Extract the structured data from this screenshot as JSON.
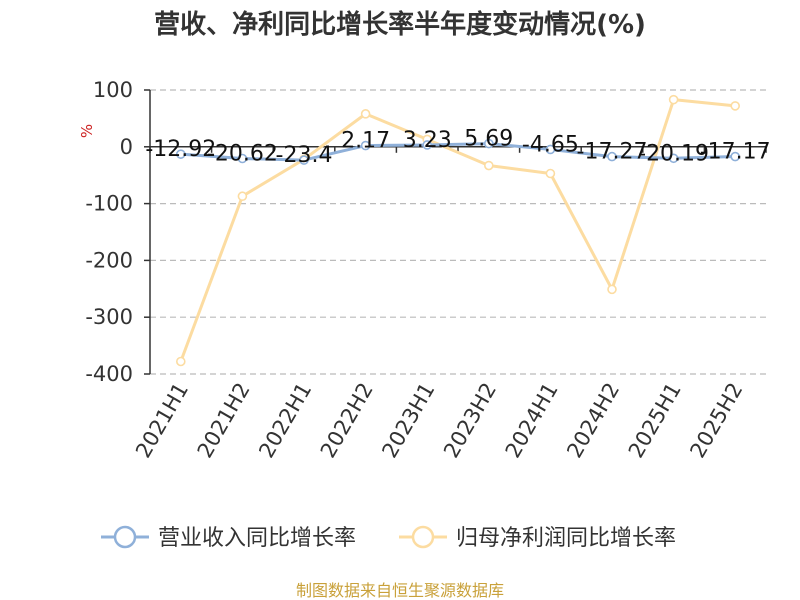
{
  "chart_data": {
    "type": "line",
    "title": "营收、净利同比增长率半年度变动情况(%)",
    "ylabel": "%",
    "categories": [
      "2021H1",
      "2021H2",
      "2022H1",
      "2022H2",
      "2023H1",
      "2023H2",
      "2024H1",
      "2024H2",
      "2025H1",
      "2025H2"
    ],
    "ylim": [
      -400,
      100
    ],
    "yticks": [
      100,
      0,
      -100,
      -200,
      -300,
      -400
    ],
    "ytick_labels": [
      "100",
      "0",
      "-100",
      "-200",
      "-300",
      "-400"
    ],
    "grid": true,
    "legend_position": "bottom",
    "series": [
      {
        "name": "营业收入同比增长率",
        "color": "#8fb0d9",
        "values": [
          -12.92,
          -20.62,
          -23.4,
          2.17,
          3.23,
          5.69,
          -4.65,
          -17.27,
          -20.19,
          -17.17
        ],
        "labels": [
          "-12.92",
          "-20.62",
          "-23.4",
          "2.17",
          "3.23",
          "5.69",
          "-4.65",
          "-17.27",
          "-20.19",
          "-17.17"
        ]
      },
      {
        "name": "归母净利润同比增长率",
        "color": "#fcdca1",
        "values": [
          -378,
          -87,
          -22,
          58,
          13,
          -33,
          -47,
          -251,
          83,
          72
        ]
      }
    ]
  },
  "source": "制图数据来自恒生聚源数据库",
  "colors": {
    "title": "#333333",
    "unit": "#cc2222",
    "source": "#c9a13a",
    "grid": "#bbbbbb",
    "axis": "#333333"
  }
}
